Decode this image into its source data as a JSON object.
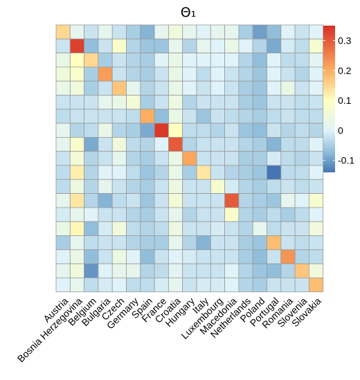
{
  "chart_data": {
    "type": "heatmap",
    "title": "Θ₁",
    "xlabel": "",
    "ylabel": "",
    "categories": [
      "Austria",
      "Bosnia Herzegovina",
      "Belgium",
      "Bulgaria",
      "Czech",
      "Germany",
      "Spain",
      "France",
      "Croatia",
      "Hungary",
      "Italy",
      "Luxembourg",
      "Macedonia",
      "Netherlands",
      "Poland",
      "Portugal",
      "Romania",
      "Slovenia",
      "Slovakia"
    ],
    "row_order": "first category at top",
    "values": [
      [
        0.15,
        0.02,
        -0.02,
        0.02,
        -0.02,
        -0.05,
        -0.08,
        0.02,
        0.05,
        0.02,
        0.0,
        0.02,
        0.02,
        -0.05,
        -0.1,
        -0.07,
        0.0,
        -0.02,
        0.0
      ],
      [
        -0.02,
        0.33,
        -0.07,
        -0.02,
        0.08,
        -0.04,
        -0.06,
        -0.06,
        0.02,
        -0.04,
        0.02,
        0.0,
        0.03,
        0.0,
        -0.04,
        -0.09,
        -0.01,
        -0.03,
        0.07
      ],
      [
        0.03,
        0.1,
        0.15,
        -0.05,
        -0.02,
        -0.04,
        -0.05,
        0.0,
        0.03,
        0.0,
        0.0,
        0.0,
        0.0,
        -0.04,
        -0.07,
        0.0,
        -0.03,
        -0.03,
        0.01
      ],
      [
        0.05,
        0.08,
        -0.05,
        0.22,
        -0.02,
        -0.04,
        -0.05,
        -0.02,
        0.03,
        0.0,
        -0.03,
        0.0,
        -0.02,
        -0.04,
        -0.06,
        0.0,
        -0.02,
        -0.04,
        0.0
      ],
      [
        0.03,
        0.05,
        -0.05,
        -0.02,
        0.17,
        0.02,
        -0.04,
        -0.02,
        0.03,
        0.0,
        -0.02,
        0.0,
        -0.02,
        -0.05,
        -0.06,
        0.0,
        0.03,
        -0.02,
        0.0
      ],
      [
        -0.02,
        -0.02,
        -0.02,
        0.02,
        0.03,
        0.06,
        -0.05,
        -0.02,
        0.04,
        -0.04,
        -0.02,
        -0.02,
        -0.02,
        -0.05,
        -0.06,
        -0.02,
        -0.02,
        -0.03,
        -0.02
      ],
      [
        -0.03,
        -0.02,
        -0.02,
        -0.02,
        -0.02,
        -0.03,
        0.2,
        -0.07,
        0.03,
        -0.02,
        -0.06,
        -0.02,
        -0.03,
        -0.04,
        -0.05,
        -0.03,
        -0.02,
        -0.03,
        -0.03
      ],
      [
        0.02,
        -0.04,
        -0.03,
        0.03,
        -0.04,
        -0.05,
        -0.09,
        0.34,
        0.1,
        -0.03,
        -0.03,
        -0.04,
        -0.02,
        -0.06,
        -0.07,
        -0.02,
        -0.04,
        -0.03,
        -0.04
      ],
      [
        0.02,
        0.08,
        -0.09,
        -0.02,
        0.05,
        -0.03,
        -0.04,
        0.0,
        0.3,
        -0.04,
        -0.02,
        -0.02,
        -0.02,
        -0.04,
        -0.05,
        -0.08,
        -0.03,
        -0.03,
        0.0
      ],
      [
        -0.02,
        0.06,
        -0.04,
        -0.02,
        0.02,
        -0.04,
        -0.05,
        -0.02,
        0.03,
        0.21,
        -0.02,
        -0.02,
        -0.02,
        -0.05,
        -0.05,
        -0.01,
        -0.03,
        -0.04,
        -0.02
      ],
      [
        -0.03,
        0.12,
        -0.04,
        0.0,
        0.0,
        -0.03,
        -0.06,
        -0.04,
        0.03,
        -0.05,
        0.13,
        -0.02,
        -0.04,
        -0.05,
        -0.06,
        -0.14,
        -0.03,
        -0.03,
        0.0
      ],
      [
        -0.03,
        0.04,
        -0.04,
        0.02,
        -0.02,
        -0.04,
        -0.05,
        -0.02,
        0.04,
        -0.02,
        -0.02,
        0.07,
        -0.01,
        -0.04,
        -0.05,
        -0.03,
        -0.02,
        -0.03,
        -0.02
      ],
      [
        0.02,
        0.13,
        -0.04,
        -0.08,
        -0.03,
        -0.02,
        -0.06,
        -0.02,
        0.06,
        -0.02,
        -0.02,
        -0.02,
        0.3,
        -0.04,
        -0.05,
        -0.06,
        0.02,
        0.0,
        0.07
      ],
      [
        -0.01,
        0.02,
        0.0,
        -0.02,
        -0.02,
        -0.04,
        -0.05,
        -0.02,
        0.02,
        -0.04,
        -0.02,
        -0.02,
        0.08,
        -0.04,
        -0.05,
        -0.03,
        -0.05,
        -0.03,
        0.0
      ],
      [
        0.03,
        0.11,
        -0.07,
        -0.01,
        0.05,
        -0.03,
        -0.04,
        -0.03,
        0.04,
        -0.02,
        -0.02,
        -0.01,
        -0.02,
        -0.04,
        0.02,
        -0.03,
        -0.02,
        -0.02,
        0.05
      ],
      [
        -0.05,
        0.02,
        -0.03,
        -0.02,
        -0.02,
        -0.04,
        -0.05,
        -0.05,
        0.02,
        -0.04,
        -0.08,
        -0.02,
        -0.02,
        -0.05,
        -0.06,
        0.18,
        -0.02,
        -0.03,
        -0.02
      ],
      [
        0.0,
        0.03,
        -0.07,
        -0.02,
        0.04,
        0.0,
        -0.07,
        -0.02,
        0.0,
        -0.01,
        -0.02,
        -0.02,
        -0.02,
        -0.05,
        -0.07,
        -0.02,
        0.23,
        -0.04,
        -0.03
      ],
      [
        0.02,
        0.05,
        -0.11,
        0.0,
        0.02,
        0.02,
        -0.04,
        -0.03,
        0.01,
        -0.02,
        -0.02,
        -0.02,
        0.0,
        -0.04,
        -0.06,
        -0.07,
        -0.04,
        0.17,
        0.05
      ],
      [
        0.0,
        0.02,
        -0.03,
        -0.01,
        0.0,
        -0.03,
        -0.03,
        -0.01,
        0.02,
        -0.02,
        -0.01,
        -0.01,
        0.0,
        -0.04,
        -0.05,
        -0.02,
        -0.02,
        -0.02,
        0.18
      ]
    ],
    "color_scale": {
      "min": -0.14,
      "max": 0.35,
      "stops": [
        {
          "value": -0.14,
          "color": "#4575b4"
        },
        {
          "value": -0.07,
          "color": "#91bfdb"
        },
        {
          "value": 0.0,
          "color": "#e0f3f8"
        },
        {
          "value": 0.1,
          "color": "#ffffbf"
        },
        {
          "value": 0.2,
          "color": "#fdae61"
        },
        {
          "value": 0.35,
          "color": "#d73027"
        }
      ],
      "legend_ticks": [
        0.3,
        0.2,
        0.1,
        0,
        -0.1
      ],
      "legend_tick_labels": [
        "0.3",
        "0.2",
        "0.1",
        "0",
        "-0.1"
      ]
    },
    "cell_border_color": "#999999",
    "legend_position": "right",
    "grid": false
  }
}
